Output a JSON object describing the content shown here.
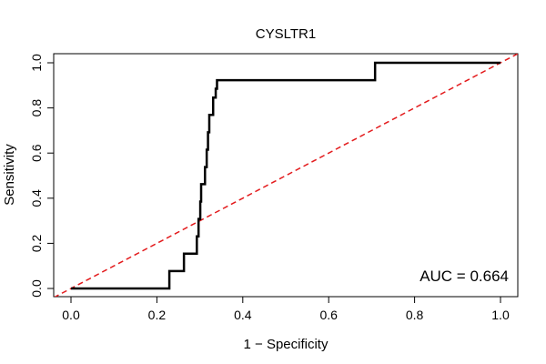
{
  "chart_data": {
    "type": "line",
    "title": "CYSLTR1",
    "xlabel": "1 − Specificity",
    "ylabel": "Sensitivity",
    "xlim": [
      0,
      1
    ],
    "ylim": [
      0,
      1
    ],
    "x_ticks": [
      "0.0",
      "0.2",
      "0.4",
      "0.6",
      "0.8",
      "1.0"
    ],
    "y_ticks": [
      "0.0",
      "0.2",
      "0.4",
      "0.6",
      "0.8",
      "1.0"
    ],
    "x_tick_values": [
      0,
      0.2,
      0.4,
      0.6,
      0.8,
      1.0
    ],
    "y_tick_values": [
      0,
      0.2,
      0.4,
      0.6,
      0.8,
      1.0
    ],
    "annotation": "AUC = 0.664",
    "grid": false,
    "series": [
      {
        "name": "ROC",
        "color": "#000000",
        "step": true,
        "x": [
          0,
          0.229,
          0.229,
          0.263,
          0.263,
          0.293,
          0.293,
          0.297,
          0.297,
          0.301,
          0.301,
          0.303,
          0.303,
          0.312,
          0.312,
          0.316,
          0.316,
          0.319,
          0.319,
          0.322,
          0.322,
          0.331,
          0.331,
          0.337,
          0.337,
          0.34,
          0.34,
          0.344,
          0.344,
          0.708,
          0.708,
          1.0
        ],
        "y": [
          0,
          0,
          0.077,
          0.077,
          0.154,
          0.154,
          0.231,
          0.231,
          0.308,
          0.308,
          0.385,
          0.385,
          0.462,
          0.462,
          0.538,
          0.538,
          0.615,
          0.615,
          0.692,
          0.692,
          0.769,
          0.769,
          0.846,
          0.846,
          0.885,
          0.885,
          0.923,
          0.923,
          0.923,
          0.923,
          1.0,
          1.0
        ]
      },
      {
        "name": "reference",
        "color": "#e31a1c",
        "dashed": true,
        "x": [
          -0.04,
          1.04
        ],
        "y": [
          -0.04,
          1.04
        ]
      }
    ]
  }
}
